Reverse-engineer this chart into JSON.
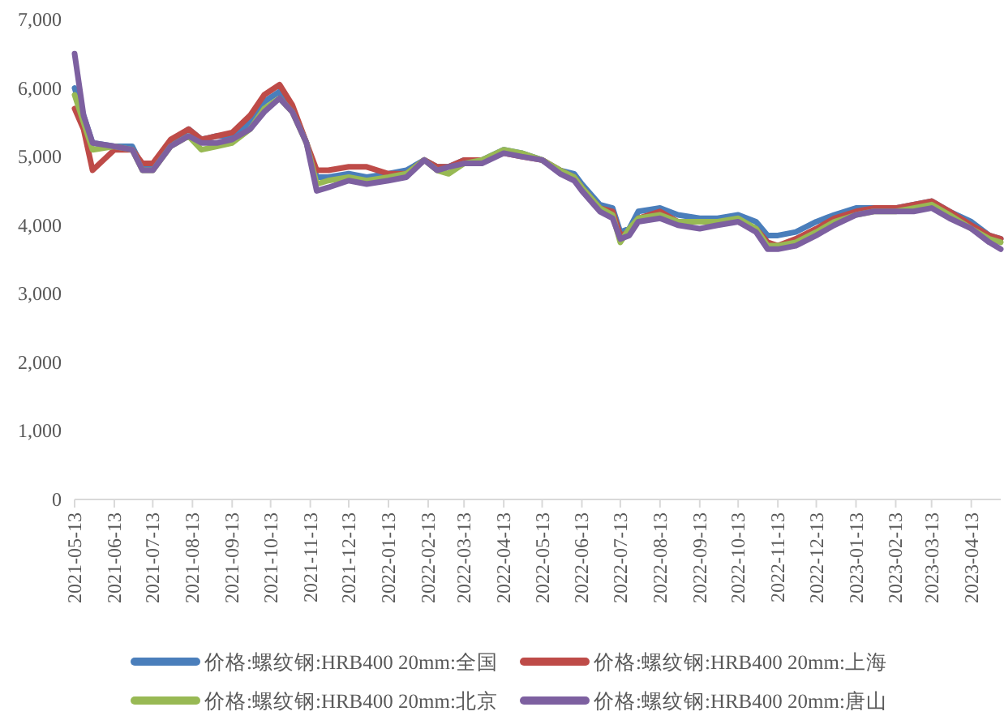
{
  "chart_data": {
    "type": "line",
    "legend": "bottom",
    "grid": false,
    "marker": "none",
    "line_style": "solid",
    "x": [
      "2021-05-13",
      "2021-05-20",
      "2021-05-27",
      "2021-06-13",
      "2021-06-27",
      "2021-07-05",
      "2021-07-13",
      "2021-07-27",
      "2021-08-10",
      "2021-08-20",
      "2021-09-01",
      "2021-09-13",
      "2021-09-27",
      "2021-10-08",
      "2021-10-20",
      "2021-10-30",
      "2021-11-10",
      "2021-11-18",
      "2021-11-27",
      "2021-12-13",
      "2021-12-27",
      "2022-01-13",
      "2022-01-27",
      "2022-02-10",
      "2022-02-20",
      "2022-03-01",
      "2022-03-13",
      "2022-03-27",
      "2022-04-13",
      "2022-04-27",
      "2022-05-13",
      "2022-05-27",
      "2022-06-07",
      "2022-06-13",
      "2022-06-27",
      "2022-07-07",
      "2022-07-13",
      "2022-07-20",
      "2022-07-27",
      "2022-08-13",
      "2022-08-27",
      "2022-09-13",
      "2022-09-27",
      "2022-10-13",
      "2022-10-27",
      "2022-11-05",
      "2022-11-13",
      "2022-11-27",
      "2022-12-13",
      "2022-12-27",
      "2023-01-13",
      "2023-01-27",
      "2023-02-13",
      "2023-02-27",
      "2023-03-13",
      "2023-03-27",
      "2023-04-13",
      "2023-04-27",
      "2023-05-06"
    ],
    "series": [
      {
        "name": "价格:螺纹钢:HRB400 20mm:全国",
        "color": "#4a7ebb",
        "values": [
          6000,
          5600,
          5200,
          5150,
          5150,
          4850,
          4850,
          5200,
          5400,
          5250,
          5300,
          5300,
          5500,
          5800,
          5950,
          5700,
          5200,
          4700,
          4700,
          4750,
          4700,
          4750,
          4800,
          4950,
          4850,
          4850,
          4950,
          4950,
          5100,
          5050,
          4950,
          4800,
          4750,
          4600,
          4300,
          4250,
          3900,
          3950,
          4200,
          4250,
          4150,
          4100,
          4100,
          4150,
          4050,
          3850,
          3850,
          3900,
          4050,
          4150,
          4250,
          4250,
          4250,
          4300,
          4350,
          4200,
          4050,
          3850,
          3800
        ]
      },
      {
        "name": "价格:螺纹钢:HRB400 20mm:上海",
        "color": "#be4b48",
        "values": [
          5700,
          5400,
          4800,
          5100,
          5100,
          4900,
          4900,
          5250,
          5400,
          5250,
          5300,
          5350,
          5600,
          5900,
          6050,
          5750,
          5200,
          4800,
          4800,
          4850,
          4850,
          4750,
          4750,
          4950,
          4850,
          4850,
          4950,
          4950,
          5050,
          5000,
          4950,
          4800,
          4700,
          4550,
          4250,
          4200,
          3850,
          3900,
          4100,
          4200,
          4050,
          4050,
          4050,
          4050,
          3950,
          3750,
          3700,
          3800,
          3950,
          4100,
          4200,
          4250,
          4250,
          4300,
          4350,
          4200,
          4000,
          3850,
          3800
        ]
      },
      {
        "name": "价格:螺纹钢:HRB400 20mm:北京",
        "color": "#98b954",
        "values": [
          5900,
          5500,
          5100,
          5150,
          5100,
          4800,
          4800,
          5150,
          5300,
          5100,
          5150,
          5200,
          5400,
          5700,
          5850,
          5650,
          5200,
          4600,
          4650,
          4700,
          4650,
          4700,
          4750,
          4950,
          4800,
          4750,
          4900,
          4950,
          5100,
          5050,
          4950,
          4800,
          4700,
          4550,
          4250,
          4150,
          3750,
          3950,
          4100,
          4150,
          4050,
          4050,
          4050,
          4100,
          3950,
          3700,
          3700,
          3750,
          3900,
          4050,
          4150,
          4200,
          4200,
          4250,
          4300,
          4150,
          3950,
          3800,
          3750
        ]
      },
      {
        "name": "价格:螺纹钢:HRB400 20mm:唐山",
        "color": "#7d60a0",
        "values": [
          6500,
          5600,
          5200,
          5150,
          5100,
          4800,
          4800,
          5150,
          5300,
          5200,
          5200,
          5250,
          5400,
          5650,
          5850,
          5650,
          5200,
          4500,
          4550,
          4650,
          4600,
          4650,
          4700,
          4950,
          4800,
          4850,
          4900,
          4900,
          5050,
          5000,
          4950,
          4750,
          4650,
          4500,
          4200,
          4100,
          3800,
          3850,
          4050,
          4100,
          4000,
          3950,
          4000,
          4050,
          3900,
          3650,
          3650,
          3700,
          3850,
          4000,
          4150,
          4200,
          4200,
          4200,
          4250,
          4100,
          3950,
          3750,
          3650
        ]
      }
    ],
    "xlim": [
      "2021-05-13",
      "2023-05-06"
    ],
    "xticks": [
      "2021-05-13",
      "2021-06-13",
      "2021-07-13",
      "2021-08-13",
      "2021-09-13",
      "2021-10-13",
      "2021-11-13",
      "2021-12-13",
      "2022-01-13",
      "2022-02-13",
      "2022-03-13",
      "2022-04-13",
      "2022-05-13",
      "2022-06-13",
      "2022-07-13",
      "2022-08-13",
      "2022-09-13",
      "2022-10-13",
      "2022-11-13",
      "2022-12-13",
      "2023-01-13",
      "2023-02-13",
      "2023-03-13",
      "2023-04-13"
    ],
    "ylim": [
      0,
      7000
    ],
    "yticks": [
      0,
      {
        "value": 1000,
        "label": "1,000"
      },
      {
        "value": 2000,
        "label": "2,000"
      },
      {
        "value": 3000,
        "label": "3,000"
      },
      {
        "value": 4000,
        "label": "4,000"
      },
      {
        "value": 5000,
        "label": "5,000"
      },
      {
        "value": 6000,
        "label": "6,000"
      },
      {
        "value": 7000,
        "label": "7,000"
      }
    ]
  }
}
